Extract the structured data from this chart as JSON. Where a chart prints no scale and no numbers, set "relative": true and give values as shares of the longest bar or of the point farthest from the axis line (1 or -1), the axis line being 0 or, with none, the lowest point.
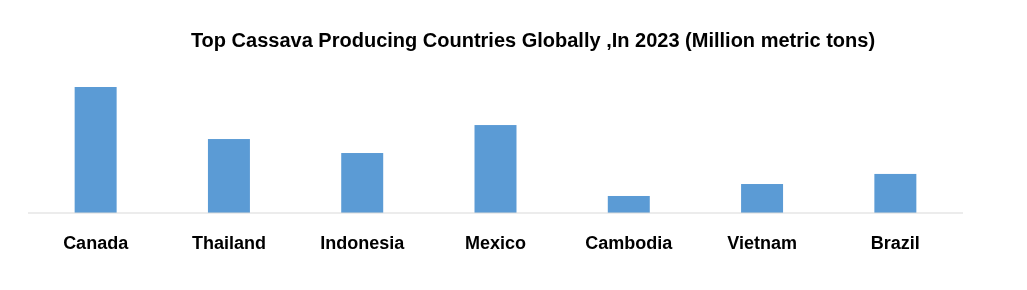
{
  "chart_data": {
    "type": "bar",
    "title": "Top Cassava Producing Countries Globally ,In 2023 (Million metric tons)",
    "categories": [
      "Canada",
      "Thailand",
      "Indonesia",
      "Mexico",
      "Cambodia",
      "Vietnam",
      "Brazil"
    ],
    "values": [
      1,
      0.587,
      0.476,
      0.698,
      0.135,
      0.23,
      0.31
    ],
    "color": "#5b9bd5",
    "relative": true
  }
}
